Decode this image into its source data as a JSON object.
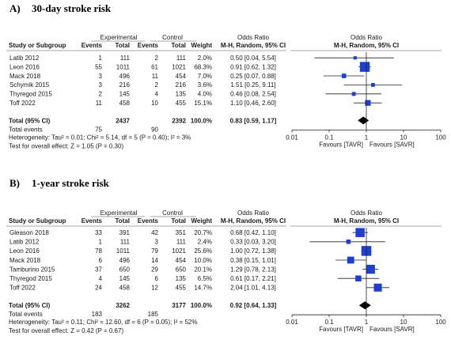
{
  "chart_data": [
    {
      "type": "forest",
      "title": "30-day stroke risk",
      "panel_label": "A)",
      "headers": {
        "study": "Study or Subgroup",
        "group1": "Experimental",
        "group2": "Control",
        "events": "Events",
        "total": "Total",
        "weight": "Weight",
        "or_title": "Odds Ratio",
        "or_sub": "M-H, Random, 95% CI",
        "plot_title": "Odds Ratio",
        "plot_sub": "M-H, Random, 95% CI"
      },
      "studies": [
        {
          "name": "Latib 2012",
          "e_events": "1",
          "e_total": "111",
          "c_events": "2",
          "c_total": "111",
          "weight": "2.0%",
          "or_text": "0.50 [0.04, 5.54]",
          "or": 0.5,
          "lo": 0.04,
          "hi": 5.54,
          "w": 2.0
        },
        {
          "name": "Leon 2016",
          "e_events": "55",
          "e_total": "1011",
          "c_events": "61",
          "c_total": "1021",
          "weight": "68.3%",
          "or_text": "0.91 [0.62, 1.32]",
          "or": 0.91,
          "lo": 0.62,
          "hi": 1.32,
          "w": 68.3
        },
        {
          "name": "Mack 2018",
          "e_events": "3",
          "e_total": "496",
          "c_events": "11",
          "c_total": "454",
          "weight": "7.0%",
          "or_text": "0.25 [0.07, 0.88]",
          "or": 0.25,
          "lo": 0.07,
          "hi": 0.88,
          "w": 7.0
        },
        {
          "name": "Schymik 2015",
          "e_events": "3",
          "e_total": "216",
          "c_events": "2",
          "c_total": "216",
          "weight": "3.6%",
          "or_text": "1.51 [0.25, 9.11]",
          "or": 1.51,
          "lo": 0.25,
          "hi": 9.11,
          "w": 3.6
        },
        {
          "name": "Thyregod 2015",
          "e_events": "2",
          "e_total": "145",
          "c_events": "4",
          "c_total": "135",
          "weight": "4.0%",
          "or_text": "0.46 [0.08, 2.54]",
          "or": 0.46,
          "lo": 0.08,
          "hi": 2.54,
          "w": 4.0
        },
        {
          "name": "Toff 2022",
          "e_events": "11",
          "e_total": "458",
          "c_events": "10",
          "c_total": "455",
          "weight": "15.1%",
          "or_text": "1.10 [0.46, 2.60]",
          "or": 1.1,
          "lo": 0.46,
          "hi": 2.6,
          "w": 15.1
        }
      ],
      "total": {
        "label": "Total (95% CI)",
        "e_total": "2437",
        "c_total": "2392",
        "weight": "100.0%",
        "or_text": "0.83 [0.59, 1.17]",
        "or": 0.83,
        "lo": 0.59,
        "hi": 1.17
      },
      "total_events": {
        "label": "Total events",
        "e": "75",
        "c": "90"
      },
      "heterogeneity": "Heterogeneity: Tau² = 0.01; Chi² = 5.14, df = 5 (P = 0.40); I² = 3%",
      "overall_effect": "Test for overall effect: Z = 1.05 (P = 0.30)",
      "axis": {
        "ticks": [
          "0.01",
          "0.1",
          "1",
          "10",
          "100"
        ],
        "tick_values": [
          0.01,
          0.1,
          1,
          10,
          100
        ],
        "scale": "log",
        "left_label": "Favours [TAVR]",
        "right_label": "Favours [SAVR]"
      }
    },
    {
      "type": "forest",
      "title": "1-year stroke risk",
      "panel_label": "B)",
      "headers": {
        "study": "Study or Subgroup",
        "group1": "Experimental",
        "group2": "Control",
        "events": "Events",
        "total": "Total",
        "weight": "Weight",
        "or_title": "Odds Ratio",
        "or_sub": "M-H, Random, 95% CI",
        "plot_title": "Odds Ratio",
        "plot_sub": "M-H, Random, 95% CI"
      },
      "studies": [
        {
          "name": "Gleason 2018",
          "e_events": "33",
          "e_total": "391",
          "c_events": "42",
          "c_total": "351",
          "weight": "20.7%",
          "or_text": "0.68 [0.42, 1.10]",
          "or": 0.68,
          "lo": 0.42,
          "hi": 1.1,
          "w": 20.7
        },
        {
          "name": "Latib 2012",
          "e_events": "1",
          "e_total": "111",
          "c_events": "3",
          "c_total": "111",
          "weight": "2.4%",
          "or_text": "0.33 [0.03, 3.20]",
          "or": 0.33,
          "lo": 0.03,
          "hi": 3.2,
          "w": 2.4
        },
        {
          "name": "Leon 2016",
          "e_events": "78",
          "e_total": "1011",
          "c_events": "79",
          "c_total": "1021",
          "weight": "25.6%",
          "or_text": "1.00 [0.72, 1.38]",
          "or": 1.0,
          "lo": 0.72,
          "hi": 1.38,
          "w": 25.6
        },
        {
          "name": "Mack 2018",
          "e_events": "6",
          "e_total": "496",
          "c_events": "14",
          "c_total": "454",
          "weight": "10.0%",
          "or_text": "0.38 [0.15, 1.01]",
          "or": 0.38,
          "lo": 0.15,
          "hi": 1.01,
          "w": 10.0
        },
        {
          "name": "Tamburino 2015",
          "e_events": "37",
          "e_total": "650",
          "c_events": "29",
          "c_total": "650",
          "weight": "20.1%",
          "or_text": "1.29 [0.78, 2.13]",
          "or": 1.29,
          "lo": 0.78,
          "hi": 2.13,
          "w": 20.1
        },
        {
          "name": "Thyregod 2015",
          "e_events": "4",
          "e_total": "145",
          "c_events": "6",
          "c_total": "135",
          "weight": "6.5%",
          "or_text": "0.61 [0.17, 2.21]",
          "or": 0.61,
          "lo": 0.17,
          "hi": 2.21,
          "w": 6.5
        },
        {
          "name": "Toff 2022",
          "e_events": "24",
          "e_total": "458",
          "c_events": "12",
          "c_total": "455",
          "weight": "14.7%",
          "or_text": "2.04 [1.01, 4.13]",
          "or": 2.04,
          "lo": 1.01,
          "hi": 4.13,
          "w": 14.7
        }
      ],
      "total": {
        "label": "Total (95% CI)",
        "e_total": "3262",
        "c_total": "3177",
        "weight": "100.0%",
        "or_text": "0.92 [0.64, 1.33]",
        "or": 0.92,
        "lo": 0.64,
        "hi": 1.33
      },
      "total_events": {
        "label": "Total events",
        "e": "183",
        "c": "185"
      },
      "heterogeneity": "Heterogeneity: Tau² = 0.11; Chi² = 12.60, df = 6 (P = 0.05); I² = 52%",
      "overall_effect": "Test for overall effect: Z = 0.42 (P = 0.67)",
      "axis": {
        "ticks": [
          "0.01",
          "0.1",
          "1",
          "10",
          "100"
        ],
        "tick_values": [
          0.01,
          0.1,
          1,
          10,
          100
        ],
        "scale": "log",
        "left_label": "Favours [TAVR]",
        "right_label": "Favours [SAVR]"
      }
    }
  ],
  "colors": {
    "marker": "#1f3fd0",
    "diamond": "#000000",
    "line": "#222222",
    "rule": "#555555"
  }
}
